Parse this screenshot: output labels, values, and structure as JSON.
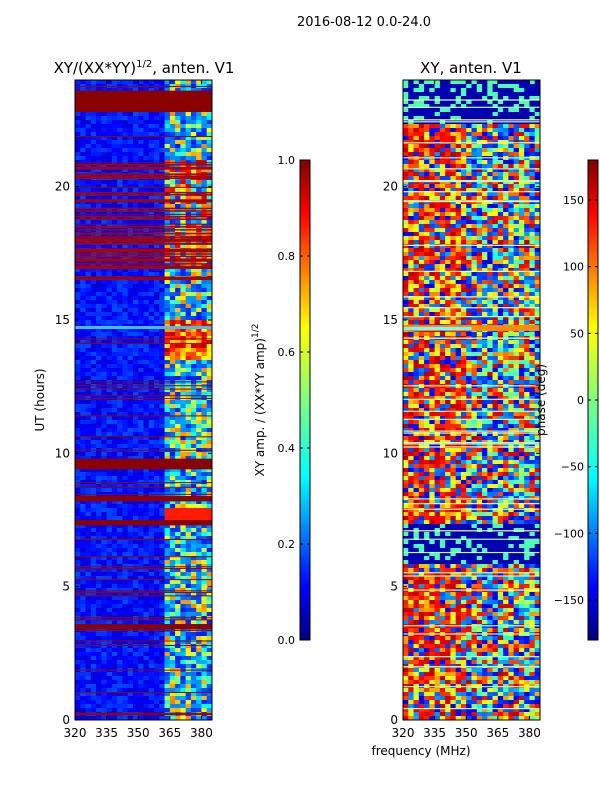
{
  "figure": {
    "suptitle": "2016-08-12 0.0-24.0",
    "xlabel_shared": "frequency (MHz)"
  },
  "chart_data": [
    {
      "type": "heatmap",
      "title_main": "XY/(XX*YY)",
      "title_sup": "1/2",
      "title_tail": ", anten. V1",
      "xlabel": "",
      "ylabel": "UT (hours)",
      "xlim": [
        320,
        385
      ],
      "ylim": [
        0,
        24
      ],
      "xticks": [
        320,
        335,
        350,
        365,
        380
      ],
      "xtick_labels": [
        "320",
        "335",
        "350",
        "365",
        "380"
      ],
      "yticks": [
        0,
        5,
        10,
        15,
        20
      ],
      "ytick_labels": [
        "0",
        "5",
        "10",
        "15",
        "20"
      ],
      "colorbar": {
        "label_main": "XY amp. / (XX*YY amp)",
        "label_sup": "1/2",
        "range": [
          0.0,
          1.0
        ],
        "ticks": [
          0.0,
          0.2,
          0.4,
          0.6,
          0.8,
          1.0
        ],
        "tick_labels": [
          "0.0",
          "0.2",
          "0.4",
          "0.6",
          "0.8",
          "1.0"
        ],
        "colormap": "jet"
      },
      "features": {
        "background_value": 0.12,
        "saturated_bands_hours": [
          [
            22.8,
            23.6
          ],
          [
            9.4,
            9.8
          ],
          [
            8.2,
            8.4
          ],
          [
            7.3,
            7.5
          ],
          [
            3.4,
            3.6
          ]
        ],
        "active_channel_range_mhz": [
          362,
          382
        ],
        "bright_line_hours": 14.7
      }
    },
    {
      "type": "heatmap",
      "title": "XY, anten. V1",
      "xlabel": "",
      "ylabel": "",
      "xlim": [
        320,
        385
      ],
      "ylim": [
        0,
        24
      ],
      "xticks": [
        320,
        335,
        350,
        365,
        380
      ],
      "xtick_labels": [
        "320",
        "335",
        "350",
        "365",
        "380"
      ],
      "yticks": [
        0,
        5,
        10,
        15,
        20
      ],
      "ytick_labels": [
        "0",
        "5",
        "10",
        "15",
        "20"
      ],
      "colorbar": {
        "label": "phase (deg)",
        "range": [
          -180,
          180
        ],
        "ticks": [
          -150,
          -100,
          -50,
          0,
          50,
          100,
          150
        ],
        "tick_labels": [
          "−150",
          "−100",
          "−50",
          "0",
          "50",
          "100",
          "150"
        ],
        "colormap": "jet"
      },
      "features": {
        "background_value": -170,
        "red_region_mhz": [
          320,
          350
        ],
        "bright_line_hours": 14.7
      }
    }
  ],
  "colors": {
    "jet_dark_blue": "#00007f",
    "jet_blue": "#0000ff",
    "jet_cyan": "#00ffff",
    "jet_green": "#7fff7f",
    "jet_yellow": "#ffff00",
    "jet_red": "#ff0000",
    "jet_dark_red": "#7f0000"
  }
}
